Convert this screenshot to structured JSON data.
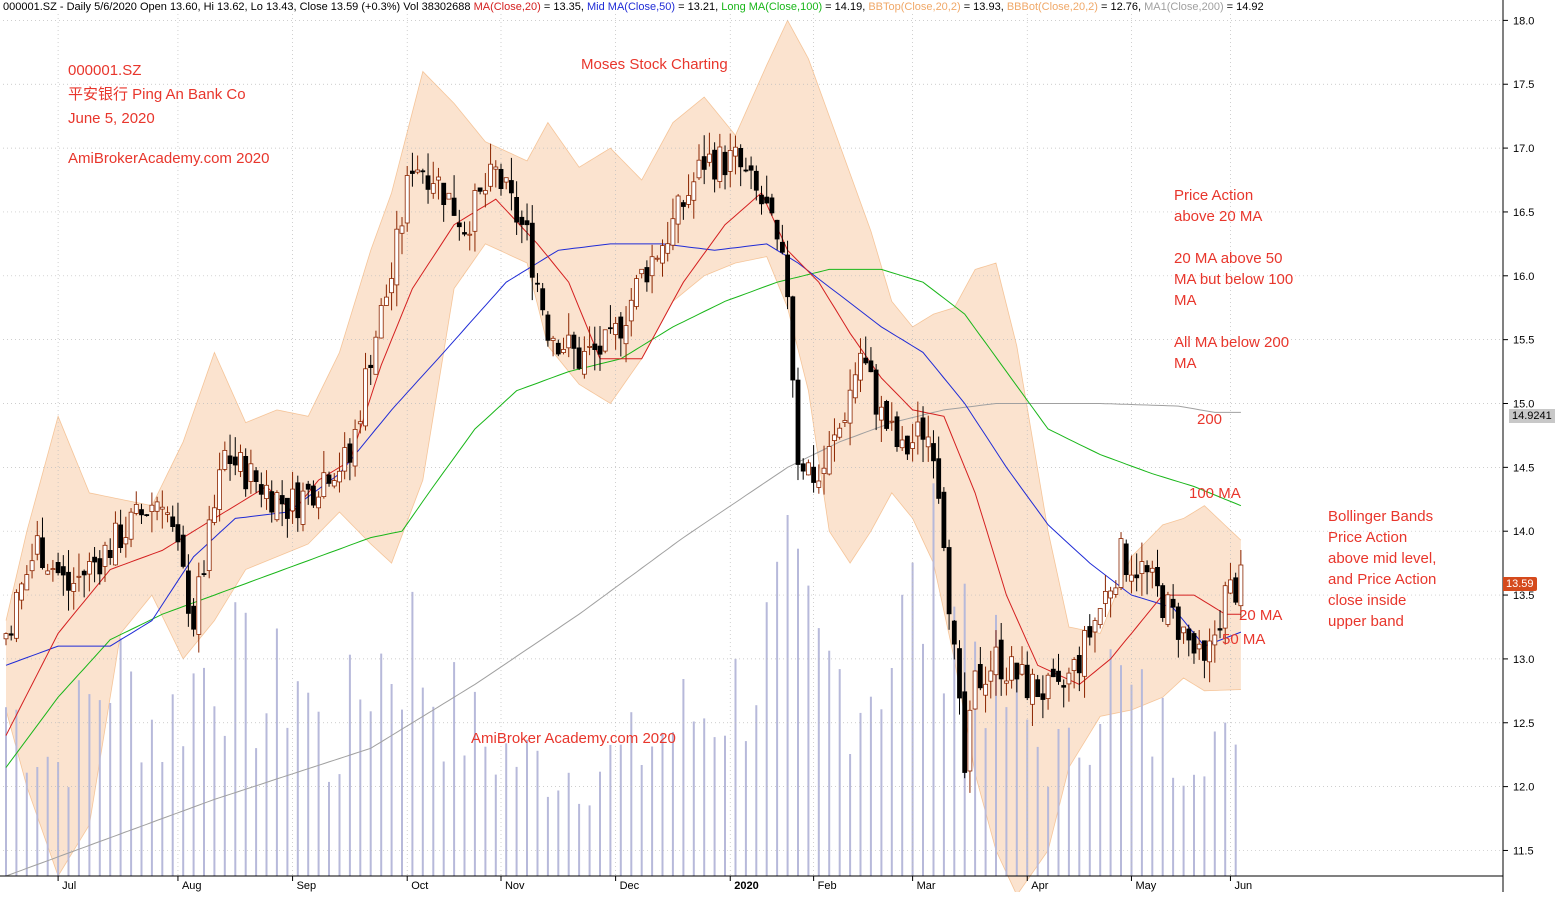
{
  "header": {
    "parts": [
      {
        "text": "000001.SZ - Daily 5/6/2020 Open 13.60, Hi 13.62, Lo 13.43, Close 13.59 (+0.3%) Vol 38302688 ",
        "color": "#000000"
      },
      {
        "text": "MA(Close,20)",
        "color": "#d42020"
      },
      {
        "text": " = 13.35, ",
        "color": "#000000"
      },
      {
        "text": "Mid MA(Close,50)",
        "color": "#1f2bd6"
      },
      {
        "text": " = 13.21, ",
        "color": "#000000"
      },
      {
        "text": "Long MA(Close,100)",
        "color": "#19b619"
      },
      {
        "text": " = 14.19, ",
        "color": "#000000"
      },
      {
        "text": "BBTop(Close,20,2)",
        "color": "#f0a868"
      },
      {
        "text": " = 13.93, ",
        "color": "#000000"
      },
      {
        "text": "BBBot(Close,20,2)",
        "color": "#f0a868"
      },
      {
        "text": " = 12.76, ",
        "color": "#000000"
      },
      {
        "text": "MA1(Close,200)",
        "color": "#a0a0a0"
      },
      {
        "text": " = 14.92",
        "color": "#000000"
      }
    ]
  },
  "annotations": {
    "ticker": "000001.SZ",
    "company": "平安银行  Ping An Bank Co",
    "date": "June 5, 2020",
    "site_top": "AmiBroker​Academy.com 2020",
    "brand": "Moses Stock Charting",
    "site_bottom": "AmiBroker Academy.com  2020",
    "ma_notes": [
      "Price Action",
      "above 20 MA",
      "",
      "20 MA above 50",
      "MA but below 100",
      "MA",
      "",
      "All MA below 200",
      "MA"
    ],
    "bb_notes": [
      "Bollinger Bands",
      "Price Action",
      "above mid level,",
      "and Price Action",
      "close inside",
      "upper band"
    ],
    "label_200": "200",
    "label_100": "100 MA",
    "label_20": "20 MA",
    "label_50": "50 MA"
  },
  "price_tags": {
    "ma200": "14.9241",
    "close": "13.59"
  },
  "colors": {
    "candle": "#000000",
    "candle_up_fill": "#ffffff",
    "candle_outline": "#8b2500",
    "ma20": "#d42020",
    "ma50": "#1f2bd6",
    "ma100": "#19b619",
    "ma200": "#a0a0a0",
    "bb_fill": "#fbe3cf",
    "bb_line": "#f0a868",
    "volume": "#b7b9da",
    "annotation": "#e8362c"
  },
  "chart_data": {
    "type": "candlestick",
    "symbol": "000001.SZ",
    "interval": "Daily",
    "y_axis": {
      "min": 11.3,
      "max": 18.05,
      "ticks": [
        11.5,
        12.0,
        12.5,
        13.0,
        13.5,
        14.0,
        14.5,
        15.0,
        15.5,
        16.0,
        16.5,
        17.0,
        17.5,
        18.0
      ],
      "tick_labels": [
        "11.5",
        "12.0",
        "12.5",
        "13.0",
        "13.5",
        "14.0",
        "14.5",
        "15.0",
        "15.5",
        "16.0",
        "16.5",
        "17.0",
        "17.5",
        "18.0"
      ]
    },
    "x_axis": {
      "months": [
        {
          "label": "Jul",
          "bar": 10
        },
        {
          "label": "Aug",
          "bar": 33
        },
        {
          "label": "Sep",
          "bar": 55
        },
        {
          "label": "Oct",
          "bar": 77
        },
        {
          "label": "Nov",
          "bar": 95
        },
        {
          "label": "Dec",
          "bar": 117
        },
        {
          "label": "2020",
          "bar": 139,
          "bold": true
        },
        {
          "label": "Feb",
          "bar": 155
        },
        {
          "label": "Mar",
          "bar": 174
        },
        {
          "label": "Apr",
          "bar": 196
        },
        {
          "label": "May",
          "bar": 216
        },
        {
          "label": "Jun",
          "bar": 235
        }
      ]
    },
    "bars": 238,
    "price_keys": [
      [
        0,
        13.2
      ],
      [
        6,
        13.9
      ],
      [
        12,
        13.55
      ],
      [
        18,
        13.8
      ],
      [
        24,
        14.05
      ],
      [
        30,
        14.3
      ],
      [
        36,
        13.3
      ],
      [
        42,
        14.6
      ],
      [
        48,
        14.4
      ],
      [
        54,
        14.2
      ],
      [
        58,
        14.3
      ],
      [
        62,
        14.5
      ],
      [
        66,
        14.55
      ],
      [
        70,
        15.4
      ],
      [
        74,
        16.0
      ],
      [
        78,
        16.9
      ],
      [
        82,
        16.8
      ],
      [
        88,
        16.4
      ],
      [
        94,
        16.8
      ],
      [
        100,
        16.3
      ],
      [
        104,
        15.6
      ],
      [
        110,
        15.35
      ],
      [
        116,
        15.45
      ],
      [
        122,
        16.0
      ],
      [
        128,
        16.4
      ],
      [
        134,
        16.9
      ],
      [
        140,
        16.9
      ],
      [
        146,
        16.5
      ],
      [
        150,
        15.9
      ],
      [
        152,
        14.6
      ],
      [
        156,
        14.4
      ],
      [
        160,
        14.8
      ],
      [
        164,
        15.4
      ],
      [
        168,
        14.9
      ],
      [
        172,
        14.6
      ],
      [
        176,
        14.8
      ],
      [
        178,
        14.7
      ],
      [
        180,
        14.0
      ],
      [
        182,
        13.0
      ],
      [
        184,
        12.1
      ],
      [
        186,
        12.8
      ],
      [
        190,
        13.0
      ],
      [
        196,
        12.8
      ],
      [
        202,
        12.7
      ],
      [
        206,
        13.0
      ],
      [
        210,
        13.4
      ],
      [
        214,
        13.8
      ],
      [
        218,
        13.7
      ],
      [
        222,
        13.45
      ],
      [
        226,
        13.2
      ],
      [
        230,
        12.9
      ],
      [
        234,
        13.5
      ],
      [
        237,
        13.59
      ]
    ],
    "ma20_keys": [
      [
        0,
        12.4
      ],
      [
        10,
        13.2
      ],
      [
        20,
        13.7
      ],
      [
        30,
        13.85
      ],
      [
        40,
        14.1
      ],
      [
        50,
        14.35
      ],
      [
        55,
        14.15
      ],
      [
        60,
        14.4
      ],
      [
        66,
        14.55
      ],
      [
        72,
        15.3
      ],
      [
        78,
        15.9
      ],
      [
        86,
        16.4
      ],
      [
        94,
        16.6
      ],
      [
        102,
        16.25
      ],
      [
        108,
        15.95
      ],
      [
        114,
        15.35
      ],
      [
        122,
        15.35
      ],
      [
        130,
        15.95
      ],
      [
        138,
        16.4
      ],
      [
        145,
        16.65
      ],
      [
        150,
        16.2
      ],
      [
        156,
        15.95
      ],
      [
        162,
        15.55
      ],
      [
        168,
        15.2
      ],
      [
        174,
        14.95
      ],
      [
        180,
        14.9
      ],
      [
        186,
        14.3
      ],
      [
        192,
        13.5
      ],
      [
        198,
        12.95
      ],
      [
        206,
        12.8
      ],
      [
        212,
        13.0
      ],
      [
        218,
        13.3
      ],
      [
        222,
        13.5
      ],
      [
        228,
        13.5
      ],
      [
        234,
        13.35
      ],
      [
        237,
        13.35
      ]
    ],
    "ma50_keys": [
      [
        0,
        12.95
      ],
      [
        10,
        13.1
      ],
      [
        20,
        13.1
      ],
      [
        28,
        13.3
      ],
      [
        36,
        13.8
      ],
      [
        44,
        14.1
      ],
      [
        54,
        14.15
      ],
      [
        64,
        14.45
      ],
      [
        74,
        14.95
      ],
      [
        84,
        15.4
      ],
      [
        96,
        15.95
      ],
      [
        106,
        16.2
      ],
      [
        116,
        16.25
      ],
      [
        126,
        16.25
      ],
      [
        136,
        16.2
      ],
      [
        146,
        16.25
      ],
      [
        152,
        16.1
      ],
      [
        160,
        15.85
      ],
      [
        168,
        15.6
      ],
      [
        176,
        15.4
      ],
      [
        184,
        15.0
      ],
      [
        192,
        14.5
      ],
      [
        200,
        14.05
      ],
      [
        208,
        13.75
      ],
      [
        216,
        13.5
      ],
      [
        224,
        13.4
      ],
      [
        230,
        13.1
      ],
      [
        237,
        13.21
      ]
    ],
    "ma100_keys": [
      [
        0,
        12.15
      ],
      [
        10,
        12.7
      ],
      [
        20,
        13.15
      ],
      [
        30,
        13.35
      ],
      [
        40,
        13.5
      ],
      [
        50,
        13.65
      ],
      [
        60,
        13.8
      ],
      [
        70,
        13.95
      ],
      [
        76,
        14.0
      ],
      [
        82,
        14.35
      ],
      [
        90,
        14.8
      ],
      [
        98,
        15.1
      ],
      [
        108,
        15.25
      ],
      [
        118,
        15.35
      ],
      [
        128,
        15.6
      ],
      [
        138,
        15.8
      ],
      [
        148,
        15.95
      ],
      [
        158,
        16.05
      ],
      [
        168,
        16.05
      ],
      [
        176,
        15.95
      ],
      [
        184,
        15.7
      ],
      [
        192,
        15.25
      ],
      [
        200,
        14.8
      ],
      [
        210,
        14.6
      ],
      [
        220,
        14.45
      ],
      [
        228,
        14.35
      ],
      [
        237,
        14.2
      ]
    ],
    "ma200_keys": [
      [
        0,
        11.3
      ],
      [
        40,
        11.9
      ],
      [
        70,
        12.3
      ],
      [
        90,
        12.8
      ],
      [
        110,
        13.35
      ],
      [
        130,
        13.95
      ],
      [
        150,
        14.5
      ],
      [
        160,
        14.7
      ],
      [
        170,
        14.85
      ],
      [
        180,
        14.95
      ],
      [
        190,
        15.0
      ],
      [
        200,
        15.0
      ],
      [
        210,
        15.0
      ],
      [
        225,
        14.98
      ],
      [
        232,
        14.93
      ]
    ],
    "bb_keys": [
      [
        0,
        12.6,
        13.3
      ],
      [
        4,
        12.0,
        14.0
      ],
      [
        10,
        11.3,
        14.9
      ],
      [
        16,
        11.7,
        14.3
      ],
      [
        22,
        13.2,
        14.25
      ],
      [
        28,
        13.5,
        14.2
      ],
      [
        34,
        13.0,
        14.7
      ],
      [
        40,
        13.3,
        15.4
      ],
      [
        46,
        13.7,
        14.85
      ],
      [
        52,
        13.8,
        14.95
      ],
      [
        58,
        13.9,
        14.9
      ],
      [
        64,
        14.15,
        15.4
      ],
      [
        70,
        13.9,
        16.2
      ],
      [
        74,
        13.75,
        16.65
      ],
      [
        80,
        14.4,
        17.6
      ],
      [
        86,
        15.9,
        17.35
      ],
      [
        92,
        16.25,
        17.05
      ],
      [
        100,
        16.1,
        16.9
      ],
      [
        104,
        15.45,
        17.2
      ],
      [
        110,
        15.15,
        16.85
      ],
      [
        116,
        15.0,
        17.0
      ],
      [
        122,
        15.35,
        16.75
      ],
      [
        128,
        15.8,
        17.2
      ],
      [
        134,
        16.0,
        17.4
      ],
      [
        140,
        16.1,
        17.1
      ],
      [
        146,
        16.15,
        17.65
      ],
      [
        150,
        15.75,
        18.0
      ],
      [
        154,
        15.1,
        17.7
      ],
      [
        158,
        14.0,
        17.25
      ],
      [
        162,
        13.75,
        16.8
      ],
      [
        166,
        14.0,
        16.35
      ],
      [
        170,
        14.3,
        15.8
      ],
      [
        174,
        14.1,
        15.6
      ],
      [
        178,
        13.75,
        15.7
      ],
      [
        182,
        13.0,
        15.75
      ],
      [
        186,
        12.1,
        16.05
      ],
      [
        190,
        11.5,
        16.1
      ],
      [
        194,
        11.15,
        15.45
      ],
      [
        200,
        11.5,
        14.0
      ],
      [
        204,
        12.15,
        13.25
      ],
      [
        210,
        12.55,
        13.2
      ],
      [
        216,
        12.6,
        13.8
      ],
      [
        222,
        12.7,
        14.05
      ],
      [
        226,
        12.85,
        14.1
      ],
      [
        230,
        12.75,
        14.2
      ],
      [
        237,
        12.76,
        13.93
      ]
    ],
    "volume_keys": [
      [
        0,
        0.45
      ],
      [
        10,
        0.3
      ],
      [
        20,
        0.55
      ],
      [
        30,
        0.38
      ],
      [
        40,
        0.6
      ],
      [
        50,
        0.45
      ],
      [
        56,
        0.55
      ],
      [
        62,
        0.3
      ],
      [
        70,
        0.55
      ],
      [
        78,
        0.62
      ],
      [
        84,
        0.45
      ],
      [
        92,
        0.35
      ],
      [
        100,
        0.3
      ],
      [
        110,
        0.28
      ],
      [
        120,
        0.32
      ],
      [
        128,
        0.4
      ],
      [
        136,
        0.45
      ],
      [
        142,
        0.5
      ],
      [
        150,
        0.7
      ],
      [
        156,
        0.55
      ],
      [
        164,
        0.5
      ],
      [
        170,
        0.6
      ],
      [
        176,
        0.75
      ],
      [
        182,
        0.8
      ],
      [
        190,
        0.5
      ],
      [
        198,
        0.35
      ],
      [
        204,
        0.3
      ],
      [
        210,
        0.55
      ],
      [
        216,
        0.45
      ],
      [
        224,
        0.35
      ],
      [
        230,
        0.42
      ],
      [
        237,
        0.25
      ]
    ],
    "last_close": 13.59,
    "ma200_last": 14.9241
  }
}
